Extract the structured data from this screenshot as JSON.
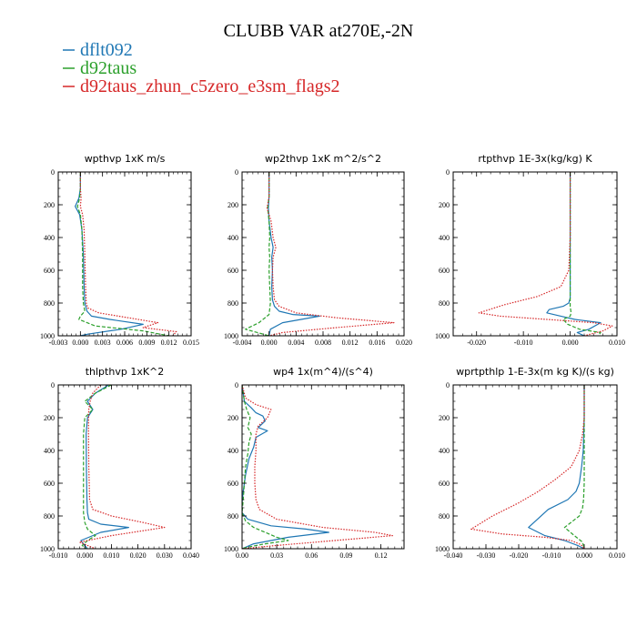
{
  "figure": {
    "title": "CLUBB VAR at270E,-2N",
    "legend": [
      {
        "label": "dflt092",
        "color": "#1f77b4"
      },
      {
        "label": "d92taus",
        "color": "#2ca02c"
      },
      {
        "label": "d92taus_zhun_c5zero_e3sm_flags2",
        "color": "#d62728"
      }
    ]
  },
  "chart_data": [
    {
      "type": "line",
      "title": "wpthvp  1xK m/s",
      "xlim": [
        -0.003,
        0.015
      ],
      "ylim": [
        1000,
        0
      ],
      "xticks": [
        -0.003,
        0.0,
        0.003,
        0.006,
        0.009,
        0.012,
        0.015
      ],
      "xtick_labels": [
        "-0.003",
        "0.000",
        "0.003",
        "0.006",
        "0.009",
        "0.012",
        "0.015"
      ],
      "yticks": [
        0,
        200,
        400,
        600,
        800,
        1000
      ],
      "ytick_labels": [
        "0",
        "200",
        "400",
        "600",
        "800",
        "1000"
      ],
      "series": [
        {
          "name": "dflt092",
          "color": "#1f77b4",
          "dash": "solid",
          "x": [
            0.0,
            0.0,
            -0.0002,
            -0.0007,
            -0.0001,
            0.0002,
            0.0004,
            0.0005,
            0.0006,
            0.0009,
            0.0015,
            0.004,
            0.0085,
            0.0055,
            0.001,
            0.0
          ],
          "y": [
            0,
            100,
            160,
            210,
            260,
            350,
            500,
            700,
            800,
            850,
            880,
            900,
            930,
            960,
            990,
            1000
          ]
        },
        {
          "name": "d92taus",
          "color": "#2ca02c",
          "dash": "dashed",
          "x": [
            0.0,
            0.0,
            -0.0001,
            -0.0004,
            0.0,
            0.0002,
            0.0003,
            0.0003,
            0.0004,
            0.0006,
            0.0,
            -0.0002,
            0.002,
            0.0085,
            0.012
          ],
          "y": [
            0,
            100,
            160,
            210,
            260,
            350,
            500,
            700,
            800,
            850,
            880,
            900,
            940,
            970,
            1000
          ]
        },
        {
          "name": "d92taus_zhun_c5zero_e3sm_flags2",
          "color": "#d62728",
          "dash": "dotted",
          "x": [
            0.0,
            0.0,
            0.0001,
            0.0,
            0.0003,
            0.0005,
            0.0006,
            0.0007,
            0.0008,
            0.001,
            0.0025,
            0.0065,
            0.0105,
            0.0085,
            0.013,
            0.0125
          ],
          "y": [
            0,
            100,
            160,
            210,
            260,
            350,
            500,
            700,
            800,
            830,
            860,
            890,
            920,
            950,
            975,
            1000
          ]
        }
      ]
    },
    {
      "type": "line",
      "title": "wp2thvp  1xK m^2/s^2",
      "xlim": [
        -0.004,
        0.02
      ],
      "ylim": [
        1000,
        0
      ],
      "xticks": [
        -0.004,
        0.0,
        0.004,
        0.008,
        0.012,
        0.016,
        0.02
      ],
      "xtick_labels": [
        "-0.004",
        "0.000",
        "0.004",
        "0.008",
        "0.012",
        "0.016",
        "0.020"
      ],
      "yticks": [
        0,
        200,
        400,
        600,
        800,
        1000
      ],
      "ytick_labels": [
        "0",
        "200",
        "400",
        "600",
        "800",
        "1000"
      ],
      "series": [
        {
          "name": "dflt092",
          "color": "#1f77b4",
          "dash": "solid",
          "x": [
            0.0,
            0.0,
            -0.0001,
            0.0,
            0.0003,
            0.0006,
            0.0004,
            0.0005,
            0.0004,
            0.0005,
            0.0008,
            0.0015,
            0.0035,
            0.0075,
            0.002,
            0.0002,
            0.0
          ],
          "y": [
            0,
            150,
            220,
            300,
            400,
            460,
            520,
            600,
            700,
            780,
            820,
            850,
            870,
            880,
            920,
            960,
            1000
          ]
        },
        {
          "name": "d92taus",
          "color": "#2ca02c",
          "dash": "dashed",
          "x": [
            0.0,
            0.0,
            -0.0002,
            0.0,
            0.0001,
            0.0,
            0.0001,
            0.0,
            0.0001,
            0.0002,
            0.0,
            -0.0015,
            -0.0035,
            0.0
          ],
          "y": [
            0,
            150,
            220,
            300,
            400,
            460,
            520,
            600,
            700,
            800,
            870,
            920,
            960,
            1000
          ]
        },
        {
          "name": "d92taus_zhun_c5zero_e3sm_flags2",
          "color": "#d62728",
          "dash": "dotted",
          "x": [
            0.0,
            0.0,
            -0.0003,
            0.0003,
            0.0006,
            0.001,
            0.0006,
            0.0005,
            0.0006,
            0.0008,
            0.0015,
            0.004,
            0.01,
            0.0185,
            0.01,
            0.002,
            0.0
          ],
          "y": [
            0,
            150,
            220,
            300,
            400,
            460,
            520,
            600,
            700,
            780,
            820,
            860,
            890,
            920,
            950,
            980,
            1000
          ]
        }
      ]
    },
    {
      "type": "line",
      "title": "rtpthvp  1E-3x(kg/kg) K",
      "xlim": [
        -0.025,
        0.01
      ],
      "ylim": [
        1000,
        0
      ],
      "xticks": [
        -0.02,
        -0.01,
        0.0,
        0.01
      ],
      "xtick_labels": [
        "-0.020",
        "-0.010",
        "0.000",
        "0.010"
      ],
      "yticks": [
        0,
        200,
        400,
        600,
        800,
        1000
      ],
      "ytick_labels": [
        "0",
        "200",
        "400",
        "600",
        "800",
        "1000"
      ],
      "series": [
        {
          "name": "dflt092",
          "color": "#1f77b4",
          "dash": "solid",
          "x": [
            0.0,
            0.0,
            0.0,
            0.0,
            0.0,
            -0.0003,
            -0.0015,
            -0.0045,
            -0.005,
            -0.002,
            0.001,
            0.0065,
            0.004,
            0.0015,
            0.003
          ],
          "y": [
            0,
            200,
            400,
            600,
            770,
            800,
            820,
            840,
            860,
            880,
            900,
            920,
            960,
            980,
            1000
          ]
        },
        {
          "name": "d92taus",
          "color": "#2ca02c",
          "dash": "dashed",
          "x": [
            0.0,
            0.0,
            0.0,
            0.0,
            0.0,
            0.0,
            0.0002,
            0.0,
            -0.0015,
            -0.0005,
            0.002,
            0.0065,
            0.006
          ],
          "y": [
            0,
            200,
            400,
            600,
            770,
            820,
            860,
            880,
            900,
            930,
            960,
            980,
            1000
          ]
        },
        {
          "name": "d92taus_zhun_c5zero_e3sm_flags2",
          "color": "#d62728",
          "dash": "dotted",
          "x": [
            0.0,
            0.0,
            0.0,
            -0.0003,
            -0.002,
            -0.007,
            -0.014,
            -0.0195,
            -0.015,
            -0.005,
            0.005,
            0.009,
            0.007,
            0.003
          ],
          "y": [
            0,
            200,
            400,
            600,
            700,
            760,
            810,
            860,
            880,
            900,
            920,
            940,
            970,
            1000
          ]
        }
      ]
    },
    {
      "type": "line",
      "title": "thlpthvp  1xK^2",
      "xlim": [
        -0.01,
        0.04
      ],
      "ylim": [
        1000,
        0
      ],
      "xticks": [
        -0.01,
        0.0,
        0.01,
        0.02,
        0.03,
        0.04
      ],
      "xtick_labels": [
        "-0.010",
        "0.000",
        "0.010",
        "0.020",
        "0.030",
        "0.040"
      ],
      "yticks": [
        0,
        200,
        400,
        600,
        800,
        1000
      ],
      "ytick_labels": [
        "0",
        "200",
        "400",
        "600",
        "800",
        "1000"
      ],
      "series": [
        {
          "name": "dflt092",
          "color": "#1f77b4",
          "dash": "solid",
          "x": [
            0.009,
            0.004,
            0.001,
            0.003,
            0.001,
            0.0005,
            0.0006,
            0.0008,
            0.001,
            0.0015,
            0.006,
            0.0165,
            0.006,
            -0.0015,
            0.001
          ],
          "y": [
            0,
            50,
            100,
            150,
            200,
            300,
            500,
            700,
            780,
            820,
            850,
            870,
            900,
            950,
            1000
          ]
        },
        {
          "name": "d92taus",
          "color": "#2ca02c",
          "dash": "dashed",
          "x": [
            0.01,
            0.004,
            0.0,
            0.003,
            0.0,
            -0.0005,
            -0.0005,
            -0.0005,
            -0.0005,
            0.0,
            0.001,
            0.004,
            0.001,
            -0.001,
            0.0005
          ],
          "y": [
            0,
            50,
            100,
            150,
            200,
            300,
            500,
            700,
            780,
            840,
            880,
            920,
            950,
            980,
            1000
          ]
        },
        {
          "name": "d92taus_zhun_c5zero_e3sm_flags2",
          "color": "#d62728",
          "dash": "dotted",
          "x": [
            0.006,
            0.003,
            0.002,
            0.0015,
            0.0014,
            0.0014,
            0.0015,
            0.0018,
            0.003,
            0.01,
            0.022,
            0.03,
            0.01,
            -0.002,
            0.004
          ],
          "y": [
            0,
            50,
            100,
            150,
            200,
            300,
            500,
            700,
            760,
            800,
            840,
            870,
            920,
            960,
            1000
          ]
        }
      ]
    },
    {
      "type": "line",
      "title": "wp4  1x(m^4)/(s^4)",
      "xlim": [
        0.0,
        0.14
      ],
      "ylim": [
        1000,
        0
      ],
      "xticks": [
        0.0,
        0.03,
        0.06,
        0.09,
        0.12
      ],
      "xtick_labels": [
        "0.00",
        "0.03",
        "0.06",
        "0.09",
        "0.12"
      ],
      "yticks": [
        0,
        200,
        400,
        600,
        800,
        1000
      ],
      "ytick_labels": [
        "0",
        "200",
        "400",
        "600",
        "800",
        "1000"
      ],
      "series": [
        {
          "name": "dflt092",
          "color": "#1f77b4",
          "dash": "solid",
          "x": [
            0.0,
            0.002,
            0.008,
            0.012,
            0.018,
            0.02,
            0.014,
            0.022,
            0.012,
            0.01,
            0.006,
            0.003,
            0.001,
            0.0,
            0.0,
            0.005,
            0.025,
            0.055,
            0.075,
            0.04,
            0.01,
            0.0
          ],
          "y": [
            0,
            100,
            140,
            170,
            190,
            220,
            260,
            280,
            320,
            380,
            450,
            550,
            650,
            720,
            780,
            820,
            860,
            880,
            900,
            930,
            970,
            1000
          ]
        },
        {
          "name": "d92taus",
          "color": "#2ca02c",
          "dash": "dashed",
          "x": [
            0.0,
            0.002,
            0.004,
            0.007,
            0.005,
            0.008,
            0.006,
            0.005,
            0.003,
            0.002,
            0.001,
            0.0,
            0.003,
            0.01,
            0.02,
            0.03,
            0.04,
            0.02,
            0.005,
            0.0
          ],
          "y": [
            0,
            100,
            150,
            200,
            260,
            300,
            350,
            420,
            500,
            600,
            700,
            780,
            830,
            870,
            900,
            930,
            950,
            970,
            990,
            1000
          ]
        },
        {
          "name": "d92taus_zhun_c5zero_e3sm_flags2",
          "color": "#d62728",
          "dash": "dotted",
          "x": [
            0.0,
            0.003,
            0.012,
            0.025,
            0.022,
            0.014,
            0.012,
            0.012,
            0.011,
            0.011,
            0.012,
            0.015,
            0.03,
            0.07,
            0.115,
            0.13,
            0.08,
            0.03,
            0.0
          ],
          "y": [
            0,
            80,
            120,
            150,
            200,
            250,
            300,
            400,
            500,
            600,
            700,
            760,
            820,
            870,
            900,
            920,
            950,
            980,
            1000
          ]
        }
      ]
    },
    {
      "type": "line",
      "title": "wprtpthlp  1-E-3x(m kg K)/(s kg)",
      "xlim": [
        -0.04,
        0.01
      ],
      "ylim": [
        1000,
        0
      ],
      "xticks": [
        -0.04,
        -0.03,
        -0.02,
        -0.01,
        0.0,
        0.01
      ],
      "xtick_labels": [
        "-0.040",
        "-0.030",
        "-0.020",
        "-0.010",
        "0.000",
        "0.010"
      ],
      "yticks": [
        0,
        200,
        400,
        600,
        800,
        1000
      ],
      "ytick_labels": [
        "0",
        "200",
        "400",
        "600",
        "800",
        "1000"
      ],
      "series": [
        {
          "name": "dflt092",
          "color": "#1f77b4",
          "dash": "solid",
          "x": [
            0.0,
            0.0,
            -0.0003,
            -0.0008,
            -0.0015,
            -0.0025,
            -0.005,
            -0.011,
            -0.017,
            -0.012,
            -0.006,
            -0.002,
            0.0
          ],
          "y": [
            0,
            200,
            400,
            500,
            600,
            650,
            700,
            760,
            870,
            920,
            950,
            980,
            1000
          ]
        },
        {
          "name": "d92taus",
          "color": "#2ca02c",
          "dash": "dashed",
          "x": [
            0.0,
            0.0,
            0.0,
            0.0,
            -0.0002,
            -0.0005,
            -0.0015,
            -0.006,
            -0.003,
            -0.0005,
            0.0
          ],
          "y": [
            0,
            200,
            400,
            600,
            700,
            750,
            800,
            870,
            920,
            960,
            1000
          ]
        },
        {
          "name": "d92taus_zhun_c5zero_e3sm_flags2",
          "color": "#d62728",
          "dash": "dotted",
          "x": [
            0.0,
            0.0,
            -0.0005,
            -0.0015,
            -0.004,
            -0.009,
            -0.014,
            -0.02,
            -0.028,
            -0.0345,
            -0.025,
            -0.012,
            -0.004,
            -0.001,
            0.0
          ],
          "y": [
            0,
            200,
            300,
            400,
            500,
            580,
            650,
            720,
            800,
            880,
            910,
            930,
            950,
            975,
            1000
          ]
        }
      ]
    }
  ]
}
